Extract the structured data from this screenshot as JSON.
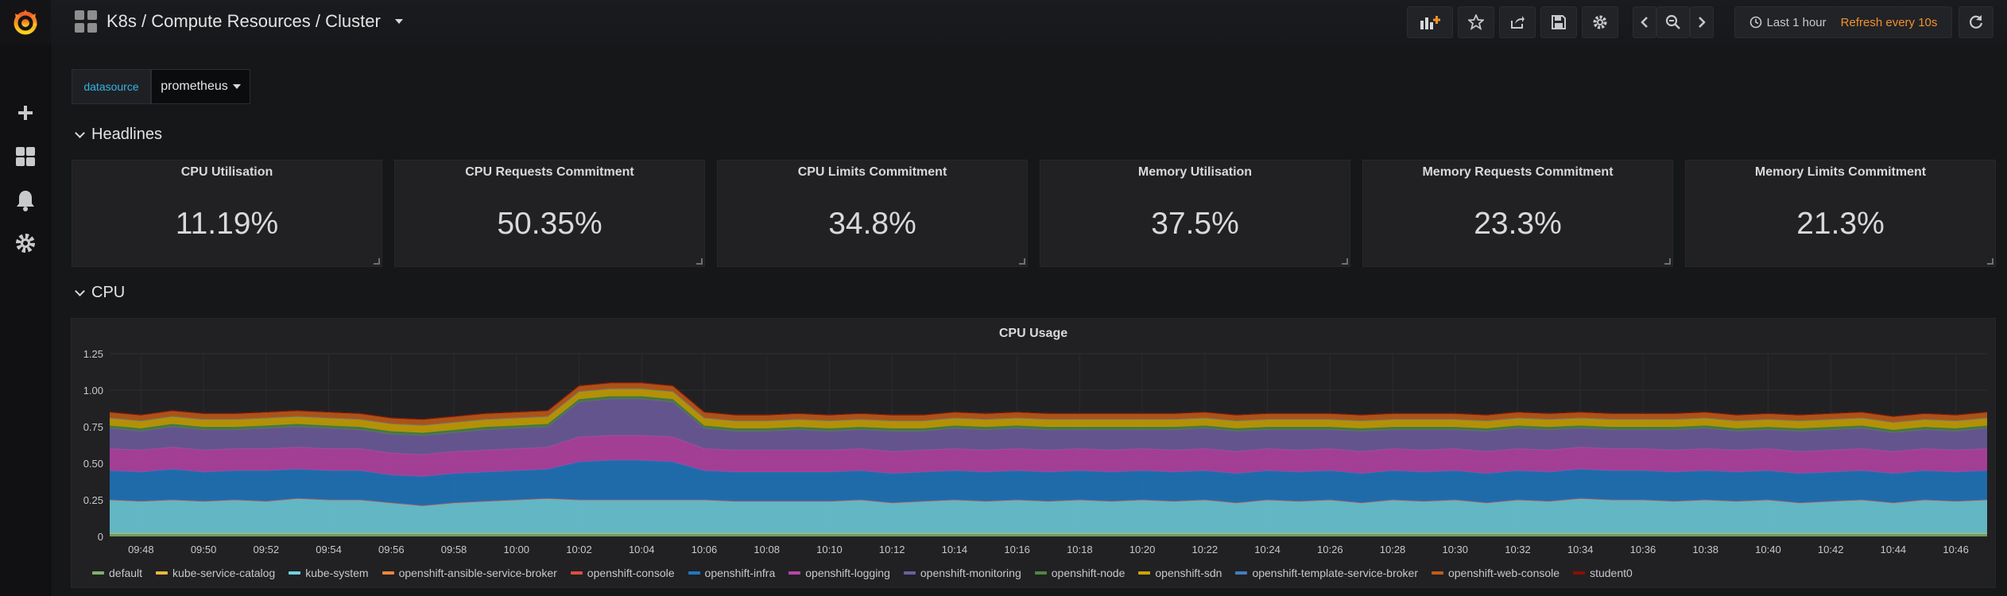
{
  "nav": {
    "title": "K8s / Compute Resources / Cluster",
    "time_range": "Last 1 hour",
    "refresh": "Refresh every 10s"
  },
  "variables": {
    "datasource_label": "datasource",
    "datasource_value": "prometheus"
  },
  "rows": {
    "headlines": "Headlines",
    "cpu": "CPU"
  },
  "stats": [
    {
      "title": "CPU Utilisation",
      "value": "11.19%"
    },
    {
      "title": "CPU Requests Commitment",
      "value": "50.35%"
    },
    {
      "title": "CPU Limits Commitment",
      "value": "34.8%"
    },
    {
      "title": "Memory Utilisation",
      "value": "37.5%"
    },
    {
      "title": "Memory Requests Commitment",
      "value": "23.3%"
    },
    {
      "title": "Memory Limits Commitment",
      "value": "21.3%"
    }
  ],
  "graph": {
    "title": "CPU Usage"
  },
  "chart_data": {
    "type": "area",
    "stacked": true,
    "title": "CPU Usage",
    "ylim": [
      0,
      1.25
    ],
    "y_ticks": [
      "0",
      "0.25",
      "0.50",
      "0.75",
      "1.00",
      "1.25"
    ],
    "x_ticks": [
      "09:48",
      "09:50",
      "09:52",
      "09:54",
      "09:56",
      "09:58",
      "10:00",
      "10:02",
      "10:04",
      "10:06",
      "10:08",
      "10:10",
      "10:12",
      "10:14",
      "10:16",
      "10:18",
      "10:20",
      "10:22",
      "10:24",
      "10:26",
      "10:28",
      "10:30",
      "10:32",
      "10:34",
      "10:36",
      "10:38",
      "10:40",
      "10:42",
      "10:44",
      "10:46"
    ],
    "x": [
      "09:47",
      "09:48",
      "09:49",
      "09:50",
      "09:51",
      "09:52",
      "09:53",
      "09:54",
      "09:55",
      "09:56",
      "09:57",
      "09:58",
      "09:59",
      "10:00",
      "10:01",
      "10:02",
      "10:03",
      "10:04",
      "10:05",
      "10:06",
      "10:07",
      "10:08",
      "10:09",
      "10:10",
      "10:11",
      "10:12",
      "10:13",
      "10:14",
      "10:15",
      "10:16",
      "10:17",
      "10:18",
      "10:19",
      "10:20",
      "10:21",
      "10:22",
      "10:23",
      "10:24",
      "10:25",
      "10:26",
      "10:27",
      "10:28",
      "10:29",
      "10:30",
      "10:31",
      "10:32",
      "10:33",
      "10:34",
      "10:35",
      "10:36",
      "10:37",
      "10:38",
      "10:39",
      "10:40",
      "10:41",
      "10:42",
      "10:43",
      "10:44",
      "10:45",
      "10:46",
      "10:47"
    ],
    "legend_position": "bottom",
    "grid": true,
    "series": [
      {
        "name": "default",
        "color": "#7eb26d",
        "values": [
          0.02,
          0.02,
          0.02,
          0.02,
          0.02,
          0.02,
          0.02,
          0.02,
          0.02,
          0.02,
          0.02,
          0.02,
          0.02,
          0.02,
          0.02,
          0.02,
          0.02,
          0.02,
          0.02,
          0.02,
          0.02,
          0.02,
          0.02,
          0.02,
          0.02,
          0.02,
          0.02,
          0.02,
          0.02,
          0.02,
          0.02,
          0.02,
          0.02,
          0.02,
          0.02,
          0.02,
          0.02,
          0.02,
          0.02,
          0.02,
          0.02,
          0.02,
          0.02,
          0.02,
          0.02,
          0.02,
          0.02,
          0.02,
          0.02,
          0.02,
          0.02,
          0.02,
          0.02,
          0.02,
          0.02,
          0.02,
          0.02,
          0.02,
          0.02,
          0.02,
          0.02
        ]
      },
      {
        "name": "kube-service-catalog",
        "color": "#eab839",
        "values": [
          0.0,
          0.0,
          0.0,
          0.0,
          0.0,
          0.0,
          0.0,
          0.0,
          0.0,
          0.0,
          0.0,
          0.0,
          0.0,
          0.0,
          0.0,
          0.0,
          0.0,
          0.0,
          0.0,
          0.0,
          0.0,
          0.0,
          0.0,
          0.0,
          0.0,
          0.0,
          0.0,
          0.0,
          0.0,
          0.0,
          0.0,
          0.0,
          0.0,
          0.0,
          0.0,
          0.0,
          0.0,
          0.0,
          0.0,
          0.0,
          0.0,
          0.0,
          0.0,
          0.0,
          0.0,
          0.0,
          0.0,
          0.0,
          0.0,
          0.0,
          0.0,
          0.0,
          0.0,
          0.0,
          0.0,
          0.0,
          0.0,
          0.0,
          0.0,
          0.0,
          0.0
        ]
      },
      {
        "name": "kube-system",
        "color": "#6ed0e0",
        "values": [
          0.23,
          0.22,
          0.23,
          0.22,
          0.23,
          0.22,
          0.24,
          0.23,
          0.23,
          0.21,
          0.19,
          0.21,
          0.22,
          0.23,
          0.24,
          0.23,
          0.23,
          0.23,
          0.23,
          0.23,
          0.22,
          0.22,
          0.22,
          0.22,
          0.23,
          0.21,
          0.22,
          0.23,
          0.22,
          0.23,
          0.22,
          0.23,
          0.22,
          0.23,
          0.22,
          0.23,
          0.21,
          0.23,
          0.22,
          0.23,
          0.21,
          0.23,
          0.22,
          0.23,
          0.21,
          0.23,
          0.22,
          0.24,
          0.23,
          0.23,
          0.22,
          0.23,
          0.22,
          0.23,
          0.21,
          0.22,
          0.23,
          0.21,
          0.23,
          0.22,
          0.23
        ]
      },
      {
        "name": "openshift-ansible-service-broker",
        "color": "#ef843c",
        "values": [
          0.0,
          0.0,
          0.0,
          0.0,
          0.0,
          0.0,
          0.0,
          0.0,
          0.0,
          0.0,
          0.0,
          0.0,
          0.0,
          0.0,
          0.0,
          0.0,
          0.0,
          0.0,
          0.0,
          0.0,
          0.0,
          0.0,
          0.0,
          0.0,
          0.0,
          0.0,
          0.0,
          0.0,
          0.0,
          0.0,
          0.0,
          0.0,
          0.0,
          0.0,
          0.0,
          0.0,
          0.0,
          0.0,
          0.0,
          0.0,
          0.0,
          0.0,
          0.0,
          0.0,
          0.0,
          0.0,
          0.0,
          0.0,
          0.0,
          0.0,
          0.0,
          0.0,
          0.0,
          0.0,
          0.0,
          0.0,
          0.0,
          0.0,
          0.0,
          0.0,
          0.0
        ]
      },
      {
        "name": "openshift-console",
        "color": "#e24d42",
        "values": [
          0.0,
          0.0,
          0.0,
          0.0,
          0.0,
          0.0,
          0.0,
          0.0,
          0.0,
          0.0,
          0.0,
          0.0,
          0.0,
          0.0,
          0.0,
          0.0,
          0.0,
          0.0,
          0.0,
          0.0,
          0.0,
          0.0,
          0.0,
          0.0,
          0.0,
          0.0,
          0.0,
          0.0,
          0.0,
          0.0,
          0.0,
          0.0,
          0.0,
          0.0,
          0.0,
          0.0,
          0.0,
          0.0,
          0.0,
          0.0,
          0.0,
          0.0,
          0.0,
          0.0,
          0.0,
          0.0,
          0.0,
          0.0,
          0.0,
          0.0,
          0.0,
          0.0,
          0.0,
          0.0,
          0.0,
          0.0,
          0.0,
          0.0,
          0.0,
          0.0,
          0.0
        ]
      },
      {
        "name": "openshift-infra",
        "color": "#1f78c1",
        "values": [
          0.2,
          0.2,
          0.21,
          0.2,
          0.2,
          0.21,
          0.2,
          0.2,
          0.2,
          0.19,
          0.2,
          0.2,
          0.2,
          0.2,
          0.2,
          0.26,
          0.27,
          0.27,
          0.26,
          0.2,
          0.2,
          0.2,
          0.2,
          0.2,
          0.2,
          0.2,
          0.2,
          0.2,
          0.2,
          0.2,
          0.2,
          0.2,
          0.2,
          0.2,
          0.2,
          0.2,
          0.2,
          0.2,
          0.2,
          0.2,
          0.2,
          0.2,
          0.2,
          0.2,
          0.2,
          0.2,
          0.2,
          0.2,
          0.2,
          0.2,
          0.2,
          0.2,
          0.2,
          0.2,
          0.2,
          0.2,
          0.2,
          0.2,
          0.2,
          0.2,
          0.2
        ]
      },
      {
        "name": "openshift-logging",
        "color": "#ba43a9",
        "values": [
          0.15,
          0.15,
          0.15,
          0.15,
          0.15,
          0.15,
          0.15,
          0.15,
          0.15,
          0.15,
          0.15,
          0.15,
          0.15,
          0.15,
          0.15,
          0.17,
          0.17,
          0.17,
          0.17,
          0.15,
          0.15,
          0.15,
          0.15,
          0.15,
          0.15,
          0.15,
          0.15,
          0.15,
          0.15,
          0.15,
          0.15,
          0.15,
          0.15,
          0.15,
          0.15,
          0.15,
          0.15,
          0.15,
          0.15,
          0.15,
          0.15,
          0.15,
          0.15,
          0.15,
          0.15,
          0.15,
          0.15,
          0.15,
          0.15,
          0.15,
          0.15,
          0.15,
          0.15,
          0.15,
          0.15,
          0.15,
          0.15,
          0.15,
          0.15,
          0.15,
          0.15
        ]
      },
      {
        "name": "openshift-monitoring",
        "color": "#705da0",
        "values": [
          0.14,
          0.13,
          0.14,
          0.14,
          0.13,
          0.14,
          0.14,
          0.14,
          0.13,
          0.13,
          0.13,
          0.13,
          0.14,
          0.14,
          0.14,
          0.24,
          0.25,
          0.25,
          0.24,
          0.14,
          0.13,
          0.13,
          0.14,
          0.13,
          0.13,
          0.14,
          0.13,
          0.14,
          0.14,
          0.14,
          0.14,
          0.13,
          0.14,
          0.13,
          0.14,
          0.14,
          0.14,
          0.13,
          0.14,
          0.13,
          0.14,
          0.13,
          0.14,
          0.13,
          0.14,
          0.14,
          0.14,
          0.13,
          0.13,
          0.13,
          0.14,
          0.14,
          0.13,
          0.13,
          0.14,
          0.14,
          0.14,
          0.13,
          0.13,
          0.13,
          0.14
        ]
      },
      {
        "name": "openshift-node",
        "color": "#508642",
        "values": [
          0.02,
          0.02,
          0.02,
          0.02,
          0.02,
          0.02,
          0.02,
          0.02,
          0.02,
          0.02,
          0.02,
          0.02,
          0.02,
          0.02,
          0.02,
          0.02,
          0.02,
          0.02,
          0.02,
          0.02,
          0.02,
          0.02,
          0.02,
          0.02,
          0.02,
          0.02,
          0.02,
          0.02,
          0.02,
          0.02,
          0.02,
          0.02,
          0.02,
          0.02,
          0.02,
          0.02,
          0.02,
          0.02,
          0.02,
          0.02,
          0.02,
          0.02,
          0.02,
          0.02,
          0.02,
          0.02,
          0.02,
          0.02,
          0.02,
          0.02,
          0.02,
          0.02,
          0.02,
          0.02,
          0.02,
          0.02,
          0.02,
          0.02,
          0.02,
          0.02,
          0.02
        ]
      },
      {
        "name": "openshift-sdn",
        "color": "#cca300",
        "values": [
          0.05,
          0.05,
          0.05,
          0.05,
          0.05,
          0.05,
          0.05,
          0.05,
          0.05,
          0.05,
          0.05,
          0.05,
          0.05,
          0.05,
          0.05,
          0.05,
          0.05,
          0.05,
          0.05,
          0.05,
          0.05,
          0.05,
          0.05,
          0.05,
          0.05,
          0.05,
          0.05,
          0.05,
          0.05,
          0.05,
          0.05,
          0.05,
          0.05,
          0.05,
          0.05,
          0.05,
          0.05,
          0.05,
          0.05,
          0.05,
          0.05,
          0.05,
          0.05,
          0.05,
          0.05,
          0.05,
          0.05,
          0.05,
          0.05,
          0.05,
          0.05,
          0.05,
          0.05,
          0.05,
          0.05,
          0.05,
          0.05,
          0.05,
          0.05,
          0.05,
          0.05
        ]
      },
      {
        "name": "openshift-template-service-broker",
        "color": "#447ebc",
        "values": [
          0.0,
          0.0,
          0.0,
          0.0,
          0.0,
          0.0,
          0.0,
          0.0,
          0.0,
          0.0,
          0.0,
          0.0,
          0.0,
          0.0,
          0.0,
          0.0,
          0.0,
          0.0,
          0.0,
          0.0,
          0.0,
          0.0,
          0.0,
          0.0,
          0.0,
          0.0,
          0.0,
          0.0,
          0.0,
          0.0,
          0.0,
          0.0,
          0.0,
          0.0,
          0.0,
          0.0,
          0.0,
          0.0,
          0.0,
          0.0,
          0.0,
          0.0,
          0.0,
          0.0,
          0.0,
          0.0,
          0.0,
          0.0,
          0.0,
          0.0,
          0.0,
          0.0,
          0.0,
          0.0,
          0.0,
          0.0,
          0.0,
          0.0,
          0.0,
          0.0,
          0.0
        ]
      },
      {
        "name": "openshift-web-console",
        "color": "#c15c17",
        "values": [
          0.04,
          0.04,
          0.04,
          0.04,
          0.04,
          0.04,
          0.04,
          0.04,
          0.04,
          0.04,
          0.04,
          0.04,
          0.04,
          0.04,
          0.04,
          0.04,
          0.04,
          0.04,
          0.04,
          0.04,
          0.04,
          0.04,
          0.04,
          0.04,
          0.04,
          0.04,
          0.04,
          0.04,
          0.04,
          0.04,
          0.04,
          0.04,
          0.04,
          0.04,
          0.04,
          0.04,
          0.04,
          0.04,
          0.04,
          0.04,
          0.04,
          0.04,
          0.04,
          0.04,
          0.04,
          0.04,
          0.04,
          0.04,
          0.04,
          0.04,
          0.04,
          0.04,
          0.04,
          0.04,
          0.04,
          0.04,
          0.04,
          0.04,
          0.04,
          0.04,
          0.04
        ]
      },
      {
        "name": "student0",
        "color": "#890f02",
        "values": [
          0.0,
          0.0,
          0.0,
          0.0,
          0.0,
          0.0,
          0.0,
          0.0,
          0.0,
          0.0,
          0.0,
          0.0,
          0.0,
          0.0,
          0.0,
          0.0,
          0.0,
          0.0,
          0.0,
          0.0,
          0.0,
          0.0,
          0.0,
          0.0,
          0.0,
          0.0,
          0.0,
          0.0,
          0.0,
          0.0,
          0.0,
          0.0,
          0.0,
          0.0,
          0.0,
          0.0,
          0.0,
          0.0,
          0.0,
          0.0,
          0.0,
          0.0,
          0.0,
          0.0,
          0.0,
          0.0,
          0.0,
          0.0,
          0.0,
          0.0,
          0.0,
          0.0,
          0.0,
          0.0,
          0.0,
          0.0,
          0.0,
          0.0,
          0.0,
          0.0,
          0.0
        ]
      }
    ]
  }
}
